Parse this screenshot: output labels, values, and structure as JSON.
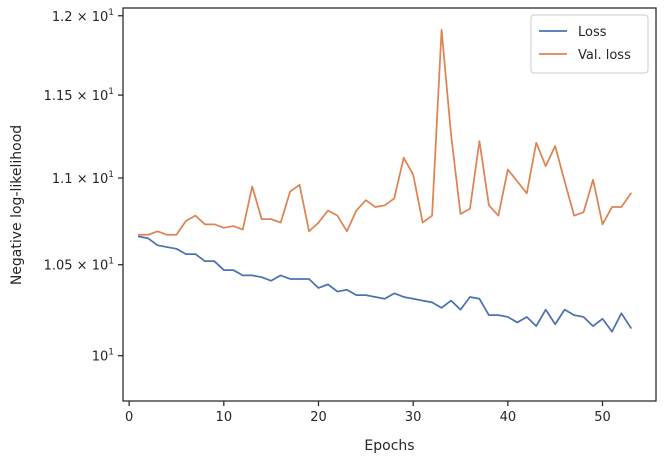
{
  "chart_data": {
    "type": "line",
    "xlabel": "Epochs",
    "ylabel": "Negative log-likelihood",
    "yscale": "log",
    "xlim": [
      -0.65,
      55.65
    ],
    "ylim": [
      9.76,
      12.05
    ],
    "grid": false,
    "legend_position": "top-right",
    "x_ticks": [
      0,
      10,
      20,
      30,
      40,
      50
    ],
    "x_tick_labels": [
      "0",
      "10",
      "20",
      "30",
      "40",
      "50"
    ],
    "y_ticks": [
      10,
      10.5,
      11,
      11.5,
      12
    ],
    "y_tick_labels": [
      "10^1",
      "1.05 × 10^1",
      "1.1 × 10^1",
      "1.15 × 10^1",
      "1.2 × 10^1"
    ],
    "y_tick_parts": [
      {
        "mant": "",
        "exp": "1"
      },
      {
        "mant": "1.05 × 10",
        "exp": "1"
      },
      {
        "mant": "1.1 × 10",
        "exp": "1"
      },
      {
        "mant": "1.15 × 10",
        "exp": "1"
      },
      {
        "mant": "1.2 × 10",
        "exp": "1"
      }
    ],
    "x": [
      1,
      2,
      3,
      4,
      5,
      6,
      7,
      8,
      9,
      10,
      11,
      12,
      13,
      14,
      15,
      16,
      17,
      18,
      19,
      20,
      21,
      22,
      23,
      24,
      25,
      26,
      27,
      28,
      29,
      30,
      31,
      32,
      33,
      34,
      35,
      36,
      37,
      38,
      39,
      40,
      41,
      42,
      43,
      44,
      45,
      46,
      47,
      48,
      49,
      50,
      51,
      52,
      53
    ],
    "series": [
      {
        "name": "Loss",
        "color": "#4c72b0",
        "values": [
          10.66,
          10.65,
          10.61,
          10.6,
          10.59,
          10.56,
          10.56,
          10.52,
          10.52,
          10.47,
          10.47,
          10.44,
          10.44,
          10.43,
          10.41,
          10.44,
          10.42,
          10.42,
          10.42,
          10.37,
          10.39,
          10.35,
          10.36,
          10.33,
          10.33,
          10.32,
          10.31,
          10.34,
          10.32,
          10.31,
          10.3,
          10.29,
          10.26,
          10.3,
          10.25,
          10.32,
          10.31,
          10.22,
          10.22,
          10.21,
          10.18,
          10.21,
          10.16,
          10.25,
          10.17,
          10.25,
          10.22,
          10.21,
          10.16,
          10.2,
          10.13,
          10.23,
          10.15
        ]
      },
      {
        "name": "Val. loss",
        "color": "#dd8452",
        "values": [
          10.67,
          10.67,
          10.69,
          10.67,
          10.67,
          10.75,
          10.78,
          10.73,
          10.73,
          10.71,
          10.72,
          10.7,
          10.95,
          10.76,
          10.76,
          10.74,
          10.92,
          10.96,
          10.69,
          10.74,
          10.81,
          10.78,
          10.69,
          10.81,
          10.87,
          10.83,
          10.84,
          10.88,
          11.12,
          11.02,
          10.74,
          10.78,
          11.91,
          11.26,
          10.79,
          10.82,
          11.22,
          10.84,
          10.78,
          11.05,
          10.98,
          10.91,
          11.21,
          11.07,
          11.19,
          10.98,
          10.78,
          10.8,
          10.99,
          10.73,
          10.83,
          10.83,
          10.91
        ]
      }
    ]
  }
}
